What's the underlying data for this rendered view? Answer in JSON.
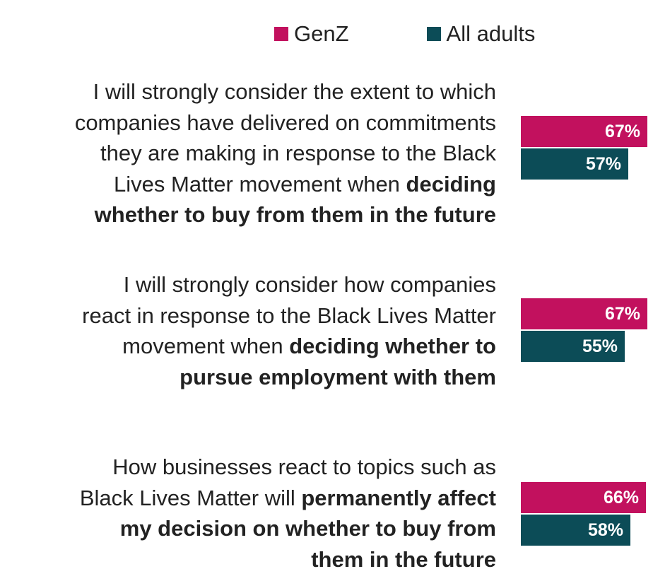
{
  "colors": {
    "genz": "#c2115e",
    "all_adults": "#0c4c57"
  },
  "legend": [
    {
      "name": "GenZ",
      "color": "#c2115e"
    },
    {
      "name": "All adults",
      "color": "#0c4c57"
    }
  ],
  "questions": [
    {
      "lines": [
        {
          "regular": "I will strongly consider the extent to which",
          "bold": ""
        },
        {
          "regular": "companies have delivered on commitments",
          "bold": ""
        },
        {
          "regular": "they are making in response to the Black",
          "bold": ""
        },
        {
          "regular": "Lives Matter movement when ",
          "bold": "deciding"
        },
        {
          "regular": "",
          "bold": "whether to buy from them in the future"
        }
      ]
    },
    {
      "lines": [
        {
          "regular": "I will strongly consider how companies",
          "bold": ""
        },
        {
          "regular": "react in response to the Black Lives Matter",
          "bold": ""
        },
        {
          "regular": "movement when ",
          "bold": "deciding whether to"
        },
        {
          "regular": "",
          "bold": "pursue employment with them"
        }
      ]
    },
    {
      "lines": [
        {
          "regular": "How businesses react to topics such as",
          "bold": ""
        },
        {
          "regular": "Black Lives Matter will ",
          "bold": "permanently affect"
        },
        {
          "regular": "",
          "bold": "my decision on whether to buy from"
        },
        {
          "regular": "",
          "bold": "them in the future"
        }
      ]
    }
  ],
  "chart_data": {
    "type": "bar",
    "orientation": "horizontal",
    "categories": [
      "I will strongly consider the extent to which companies have delivered on commitments they are making in response to the Black Lives Matter movement when deciding whether to buy from them in the future",
      "I will strongly consider how companies react in response to the Black Lives Matter movement when deciding whether to pursue employment with them",
      "How businesses react to topics such as Black Lives Matter will permanently affect my decision on whether to buy from them in the future"
    ],
    "series": [
      {
        "name": "GenZ",
        "color": "#c2115e",
        "values": [
          67,
          67,
          66
        ],
        "labels": [
          "67%",
          "67%",
          "66%"
        ]
      },
      {
        "name": "All adults",
        "color": "#0c4c57",
        "values": [
          57,
          55,
          58
        ],
        "labels": [
          "57%",
          "55%",
          "58%"
        ]
      }
    ],
    "legend_position": "top",
    "xlim": [
      0,
      100
    ],
    "grid": false
  }
}
